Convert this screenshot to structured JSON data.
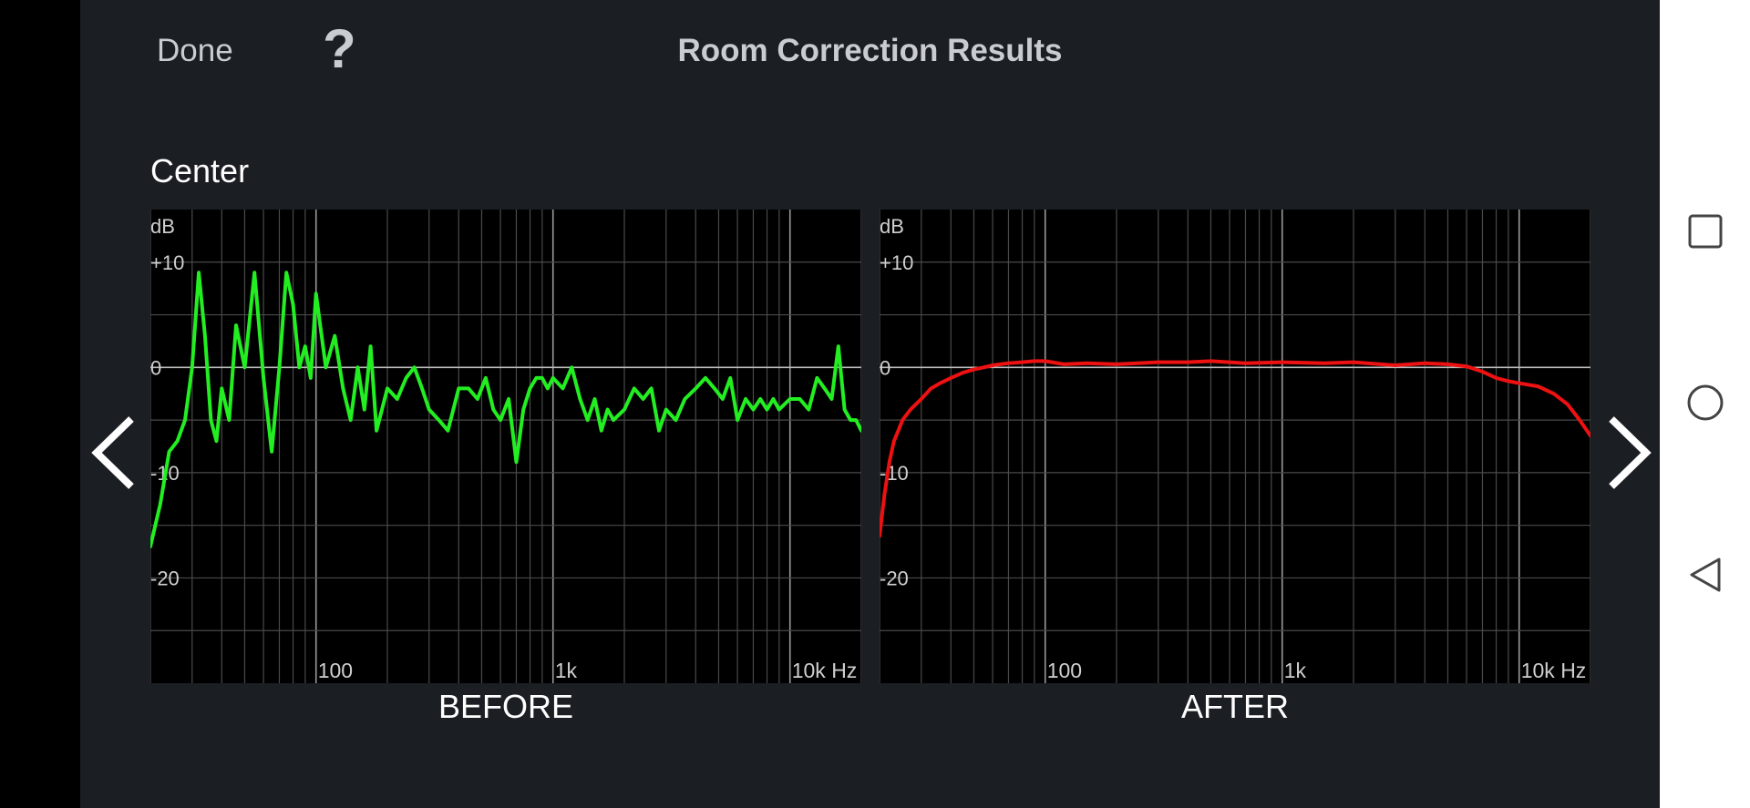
{
  "header": {
    "done_label": "Done",
    "help_label": "?",
    "title": "Room Correction Results"
  },
  "channel_label": "Center",
  "navigation": {
    "prev_icon": "chevron-left-icon",
    "next_icon": "chevron-right-icon"
  },
  "system_nav": {
    "recents_icon": "square-icon",
    "home_icon": "circle-icon",
    "back_icon": "triangle-back-icon"
  },
  "colors": {
    "before_line": "#22ee22",
    "after_line": "#ee1111",
    "background": "#1b1e23"
  },
  "chart_data": [
    {
      "type": "line",
      "caption": "BEFORE",
      "ylabel": "dB",
      "y_ticks": [
        "+10",
        "0",
        "-10",
        "-20"
      ],
      "x_ticks": [
        "100",
        "1k",
        "10k Hz"
      ],
      "xscale": "log",
      "xlim": [
        20,
        20000
      ],
      "ylim": [
        -30,
        15
      ],
      "grid": true,
      "series": [
        {
          "color": "#22ee22",
          "x": [
            20,
            22,
            24,
            26,
            28,
            30,
            32,
            34,
            36,
            38,
            40,
            43,
            46,
            50,
            55,
            60,
            65,
            70,
            75,
            80,
            85,
            90,
            95,
            100,
            110,
            120,
            130,
            140,
            150,
            160,
            170,
            180,
            200,
            220,
            240,
            260,
            280,
            300,
            330,
            360,
            400,
            440,
            480,
            520,
            560,
            600,
            650,
            700,
            750,
            800,
            850,
            900,
            950,
            1000,
            1100,
            1200,
            1300,
            1400,
            1500,
            1600,
            1700,
            1800,
            2000,
            2200,
            2400,
            2600,
            2800,
            3000,
            3300,
            3600,
            4000,
            4400,
            4800,
            5200,
            5600,
            6000,
            6500,
            7000,
            7500,
            8000,
            8500,
            9000,
            10000,
            11000,
            12000,
            13000,
            14000,
            15000,
            16000,
            17000,
            18000,
            19000,
            20000
          ],
          "values": [
            -17,
            -13,
            -8,
            -7,
            -5,
            0,
            9,
            3,
            -5,
            -7,
            -2,
            -5,
            4,
            0,
            9,
            -1,
            -8,
            0,
            9,
            6,
            0,
            2,
            -1,
            7,
            0,
            3,
            -2,
            -5,
            0,
            -4,
            2,
            -6,
            -2,
            -3,
            -1,
            0,
            -2,
            -4,
            -5,
            -6,
            -2,
            -2,
            -3,
            -1,
            -4,
            -5,
            -3,
            -9,
            -4,
            -2,
            -1,
            -1,
            -2,
            -1,
            -2,
            0,
            -3,
            -5,
            -3,
            -6,
            -4,
            -5,
            -4,
            -2,
            -3,
            -2,
            -6,
            -4,
            -5,
            -3,
            -2,
            -1,
            -2,
            -3,
            -1,
            -5,
            -3,
            -4,
            -3,
            -4,
            -3,
            -4,
            -3,
            -3,
            -4,
            -1,
            -2,
            -3,
            2,
            -4,
            -5,
            -5,
            -6
          ]
        }
      ]
    },
    {
      "type": "line",
      "caption": "AFTER",
      "ylabel": "dB",
      "y_ticks": [
        "+10",
        "0",
        "-10",
        "-20"
      ],
      "x_ticks": [
        "100",
        "1k",
        "10k Hz"
      ],
      "xscale": "log",
      "xlim": [
        20,
        20000
      ],
      "ylim": [
        -30,
        15
      ],
      "grid": true,
      "series": [
        {
          "color": "#ee1111",
          "x": [
            20,
            21,
            22,
            23,
            24,
            25,
            27,
            30,
            33,
            36,
            40,
            45,
            50,
            55,
            60,
            70,
            80,
            90,
            100,
            120,
            150,
            200,
            300,
            400,
            500,
            700,
            1000,
            1500,
            2000,
            3000,
            4000,
            5000,
            6000,
            7000,
            8000,
            9000,
            10000,
            12000,
            14000,
            16000,
            18000,
            20000
          ],
          "values": [
            -16,
            -12,
            -9,
            -7,
            -6,
            -5,
            -4,
            -3,
            -2,
            -1.5,
            -1,
            -0.5,
            -0.2,
            0,
            0.2,
            0.4,
            0.5,
            0.6,
            0.6,
            0.3,
            0.4,
            0.3,
            0.5,
            0.5,
            0.6,
            0.4,
            0.5,
            0.4,
            0.5,
            0.2,
            0.4,
            0.3,
            0.1,
            -0.4,
            -1,
            -1.3,
            -1.5,
            -1.8,
            -2.5,
            -3.5,
            -5,
            -6.5
          ]
        }
      ]
    }
  ]
}
